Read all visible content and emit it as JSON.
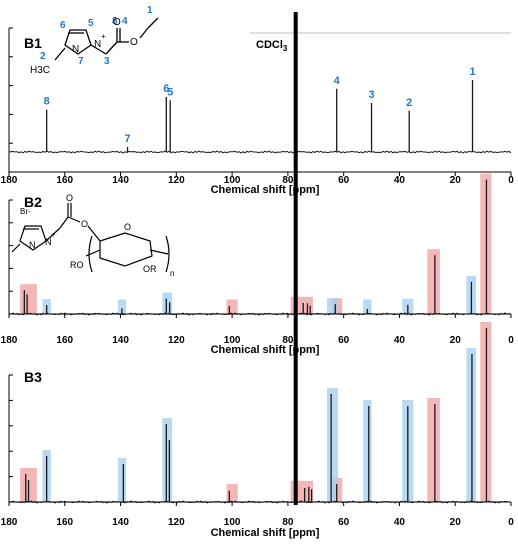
{
  "chart_data": [
    {
      "panel": "B1",
      "type": "line",
      "xlabel": "Chemical shift [ppm]",
      "xlim": [
        180,
        0
      ],
      "x_ticks": [
        180,
        160,
        140,
        120,
        100,
        80,
        60,
        40,
        20,
        0
      ],
      "solvent_label": "CDCl",
      "solvent_subscript": "3",
      "peaks": [
        {
          "label": "8",
          "x": 166.5,
          "height": 0.77
        },
        {
          "label": "7",
          "x": 137.5,
          "height": 0.09
        },
        {
          "label": "6",
          "x": 123.6,
          "height": 1.0
        },
        {
          "label": "5",
          "x": 122.2,
          "height": 0.94
        },
        {
          "label": "4",
          "x": 62.5,
          "height": 1.15
        },
        {
          "label": "3",
          "x": 50.0,
          "height": 0.89
        },
        {
          "label": "2",
          "x": 36.5,
          "height": 0.75
        },
        {
          "label": "1",
          "x": 13.8,
          "height": 1.31
        }
      ],
      "structure": {
        "charge": "+",
        "number_labels": [
          "1",
          "2",
          "3",
          "4",
          "5",
          "6",
          "7",
          "8"
        ],
        "methyl_label": "H3C",
        "atoms": [
          "N",
          "N",
          "O",
          "O"
        ]
      }
    },
    {
      "panel": "B2",
      "type": "line",
      "xlabel": "Chemical shift [ppm]",
      "xlim": [
        180,
        0
      ],
      "x_ticks": [
        180,
        160,
        140,
        120,
        100,
        80,
        60,
        40,
        20,
        0
      ],
      "peaks": [
        {
          "x": 174.5,
          "height": 0.85
        },
        {
          "x": 173.5,
          "height": 0.7
        },
        {
          "x": 166.5,
          "height": 0.32
        },
        {
          "x": 139.5,
          "height": 0.2
        },
        {
          "x": 123.6,
          "height": 0.55
        },
        {
          "x": 122.4,
          "height": 0.42
        },
        {
          "x": 101.0,
          "height": 0.28
        },
        {
          "x": 74.5,
          "height": 0.4
        },
        {
          "x": 73.0,
          "height": 0.38
        },
        {
          "x": 72.0,
          "height": 0.3
        },
        {
          "x": 63.0,
          "height": 0.35
        },
        {
          "x": 51.5,
          "height": 0.18
        },
        {
          "x": 37.0,
          "height": 0.33
        },
        {
          "x": 27.3,
          "height": 2.1
        },
        {
          "x": 14.2,
          "height": 1.15
        },
        {
          "x": 8.8,
          "height": 4.8
        }
      ],
      "highlights_red": [
        [
          176,
          170
        ],
        [
          102,
          98
        ],
        [
          79,
          71
        ],
        [
          64,
          60.5
        ],
        [
          30,
          25.5
        ],
        [
          11,
          7
        ]
      ],
      "highlights_blue": [
        [
          168,
          165
        ],
        [
          141,
          138
        ],
        [
          125,
          121.5
        ],
        [
          66,
          62
        ],
        [
          53,
          50
        ],
        [
          39,
          35
        ],
        [
          16,
          12.5
        ]
      ],
      "structure": {
        "charge": "+",
        "counterion": "Br-",
        "atoms": [
          "N",
          "N",
          "O",
          "O",
          "O",
          "RO",
          "OR",
          "n"
        ]
      }
    },
    {
      "panel": "B3",
      "type": "line",
      "xlabel": "Chemical shift [ppm]",
      "xlim": [
        180,
        0
      ],
      "x_ticks": [
        180,
        160,
        140,
        120,
        100,
        80,
        60,
        40,
        20,
        0
      ],
      "peaks": [
        {
          "x": 174.0,
          "height": 0.7
        },
        {
          "x": 173.0,
          "height": 0.55
        },
        {
          "x": 166.5,
          "height": 1.15
        },
        {
          "x": 139.0,
          "height": 0.95
        },
        {
          "x": 123.6,
          "height": 1.95
        },
        {
          "x": 122.5,
          "height": 1.55
        },
        {
          "x": 101.0,
          "height": 0.28
        },
        {
          "x": 74.0,
          "height": 0.35
        },
        {
          "x": 72.5,
          "height": 0.38
        },
        {
          "x": 71.5,
          "height": 0.32
        },
        {
          "x": 64.5,
          "height": 2.7
        },
        {
          "x": 62.5,
          "height": 0.45
        },
        {
          "x": 51.0,
          "height": 2.4
        },
        {
          "x": 37.0,
          "height": 2.4
        },
        {
          "x": 27.3,
          "height": 2.45
        },
        {
          "x": 14.0,
          "height": 3.7
        },
        {
          "x": 8.8,
          "height": 4.35
        }
      ],
      "highlights_red": [
        [
          176,
          170
        ],
        [
          102,
          98
        ],
        [
          79,
          71
        ],
        [
          64,
          60.5
        ],
        [
          30,
          25.5
        ],
        [
          11,
          7
        ]
      ],
      "highlights_blue": [
        [
          168,
          165
        ],
        [
          141,
          138
        ],
        [
          125,
          121.5
        ],
        [
          66,
          62
        ],
        [
          53,
          50
        ],
        [
          39,
          35
        ],
        [
          16,
          12.5
        ]
      ]
    }
  ],
  "panel_labels": [
    "B1",
    "B2",
    "B3"
  ],
  "colors": {
    "highlight_red": "#f0a5a5",
    "highlight_blue": "#a9d0ef",
    "peak_label": "#1f78c8",
    "spectrum": "#1a1a1a"
  }
}
